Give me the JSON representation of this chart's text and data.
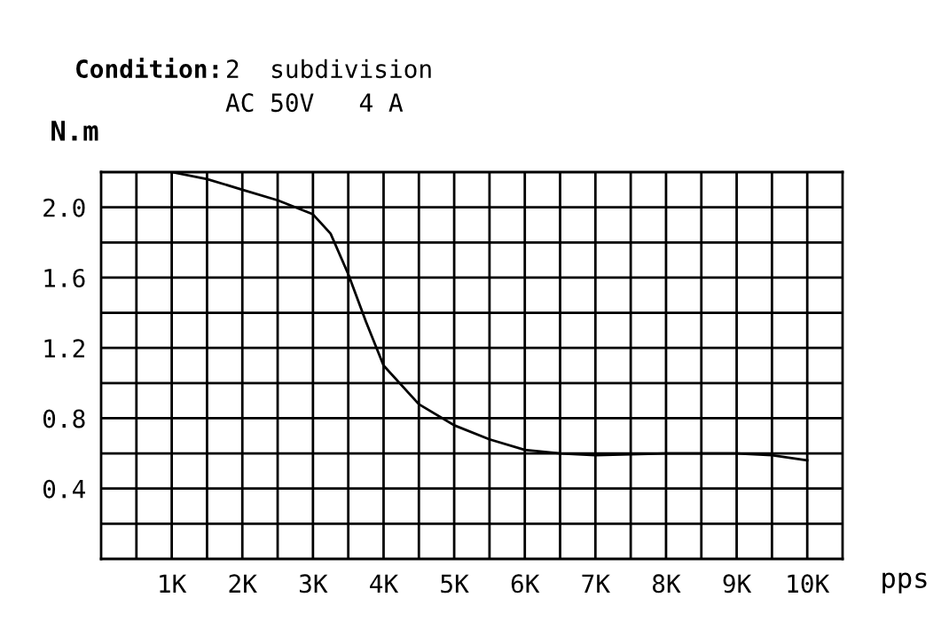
{
  "chart_data": {
    "type": "line",
    "xlabel": "pps",
    "ylabel": "N.m",
    "annotations": [
      "Condition:",
      "2  subdivision",
      "AC 50V   4 A"
    ],
    "x": [
      1,
      1.5,
      2,
      2.5,
      3,
      3.25,
      3.5,
      3.75,
      4,
      4.5,
      5,
      5.5,
      6,
      6.5,
      7,
      8,
      9,
      9.5,
      10
    ],
    "series": [
      {
        "color": "#000000",
        "values": [
          2.2,
          2.16,
          2.1,
          2.04,
          1.96,
          1.85,
          1.62,
          1.35,
          1.1,
          0.88,
          0.76,
          0.68,
          0.62,
          0.6,
          0.59,
          0.6,
          0.6,
          0.59,
          0.56
        ]
      }
    ],
    "xlim": [
      0,
      10.5
    ],
    "xticks": [
      {
        "value": 0.5,
        "label": null
      },
      {
        "value": 1,
        "label": "1K"
      },
      {
        "value": 1.5,
        "label": null
      },
      {
        "value": 2,
        "label": "2K"
      },
      {
        "value": 2.5,
        "label": null
      },
      {
        "value": 3,
        "label": "3K"
      },
      {
        "value": 3.5,
        "label": null
      },
      {
        "value": 4,
        "label": "4K"
      },
      {
        "value": 4.5,
        "label": null
      },
      {
        "value": 5,
        "label": "5K"
      },
      {
        "value": 5.5,
        "label": null
      },
      {
        "value": 6,
        "label": "6K"
      },
      {
        "value": 6.5,
        "label": null
      },
      {
        "value": 7,
        "label": "7K"
      },
      {
        "value": 7.5,
        "label": null
      },
      {
        "value": 8,
        "label": "8K"
      },
      {
        "value": 8.5,
        "label": null
      },
      {
        "value": 9,
        "label": "9K"
      },
      {
        "value": 9.5,
        "label": null
      },
      {
        "value": 10,
        "label": "10K"
      }
    ],
    "ylim": [
      0,
      2.2
    ],
    "yticks": [
      {
        "value": 0.2,
        "label": null
      },
      {
        "value": 0.4,
        "label": "0.4"
      },
      {
        "value": 0.6,
        "label": null
      },
      {
        "value": 0.8,
        "label": "0.8"
      },
      {
        "value": 1.0,
        "label": null
      },
      {
        "value": 1.2,
        "label": "1.2"
      },
      {
        "value": 1.4,
        "label": null
      },
      {
        "value": 1.6,
        "label": "1.6"
      },
      {
        "value": 1.8,
        "label": null
      },
      {
        "value": 2.0,
        "label": "2.0"
      }
    ],
    "grid": true,
    "marker": "none",
    "line_style": "solid"
  }
}
